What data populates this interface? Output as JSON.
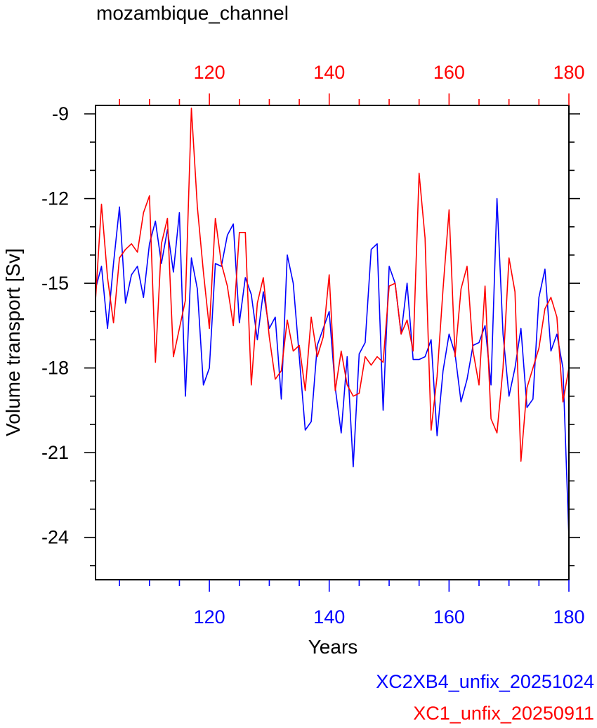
{
  "chart_data": {
    "type": "line",
    "title": "mozambique_channel",
    "xlabel": "Years",
    "ylabel": "Volume transport [Sv]",
    "ylim": [
      -25.5,
      -8.7
    ],
    "yticks": [
      -9,
      -12,
      -15,
      -18,
      -21,
      -24
    ],
    "bottom_axis": {
      "color": "#0000ff",
      "xlim": [
        101,
        180
      ],
      "ticks": [
        120,
        140,
        160,
        180
      ]
    },
    "top_axis": {
      "color": "#ff0000",
      "xlim": [
        101,
        180
      ],
      "ticks": [
        120,
        140,
        160,
        180
      ]
    },
    "series": [
      {
        "name": "XC2XB4_unfix_20251024",
        "color": "#0000ff",
        "x_start": 101,
        "values": [
          -15.2,
          -14.4,
          -16.6,
          -14.3,
          -12.3,
          -15.7,
          -14.7,
          -14.4,
          -15.5,
          -13.6,
          -12.8,
          -14.3,
          -13.1,
          -14.6,
          -12.5,
          -19.0,
          -14.1,
          -15.2,
          -18.6,
          -18.0,
          -14.3,
          -14.4,
          -13.3,
          -12.9,
          -16.4,
          -14.8,
          -15.4,
          -17.0,
          -15.3,
          -16.6,
          -16.2,
          -19.1,
          -14.0,
          -15.0,
          -17.6,
          -20.2,
          -19.9,
          -17.2,
          -16.6,
          -16.0,
          -18.7,
          -20.3,
          -17.6,
          -21.5,
          -17.5,
          -17.1,
          -13.8,
          -13.6,
          -19.5,
          -14.4,
          -15.0,
          -16.8,
          -15.0,
          -17.7,
          -17.7,
          -17.6,
          -17.0,
          -20.4,
          -18.1,
          -16.8,
          -17.5,
          -19.2,
          -18.4,
          -17.2,
          -17.1,
          -16.5,
          -18.6,
          -12.0,
          -16.8,
          -19.0,
          -18.0,
          -16.6,
          -19.4,
          -19.1,
          -15.5,
          -14.5,
          -17.4,
          -16.8,
          -18.0,
          -24.0
        ]
      },
      {
        "name": "XC1_unfix_20250911",
        "color": "#ff0000",
        "x_start": 101,
        "values": [
          -15.6,
          -12.2,
          -14.8,
          -16.4,
          -14.1,
          -13.8,
          -13.6,
          -13.9,
          -12.5,
          -11.9,
          -17.8,
          -13.6,
          -12.7,
          -17.6,
          -16.6,
          -15.6,
          -8.8,
          -12.3,
          -14.6,
          -16.6,
          -12.7,
          -14.3,
          -15.1,
          -16.5,
          -13.2,
          -13.2,
          -18.6,
          -15.7,
          -14.8,
          -16.9,
          -18.4,
          -18.1,
          -16.3,
          -17.4,
          -17.2,
          -18.8,
          -16.2,
          -17.6,
          -16.9,
          -14.7,
          -18.8,
          -17.4,
          -18.6,
          -19.0,
          -18.9,
          -17.6,
          -17.9,
          -17.6,
          -17.8,
          -15.1,
          -15.0,
          -16.8,
          -16.3,
          -17.4,
          -11.1,
          -13.4,
          -20.2,
          -18.3,
          -15.2,
          -12.4,
          -17.6,
          -15.2,
          -14.4,
          -17.4,
          -18.6,
          -15.1,
          -19.8,
          -20.3,
          -18.0,
          -14.1,
          -15.3,
          -21.3,
          -18.7,
          -18.0,
          -17.3,
          -15.9,
          -15.5,
          -16.2,
          -19.2,
          -18.0
        ]
      }
    ],
    "grid": false,
    "legend": "bottom-right"
  }
}
